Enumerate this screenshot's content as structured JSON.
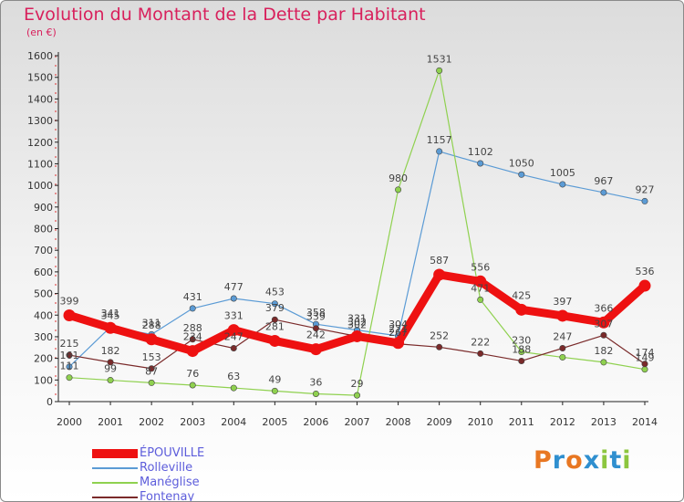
{
  "chart_data": {
    "type": "line",
    "title": "Evolution du Montant de la Dette par Habitant",
    "subtitle": "(en €)",
    "x": [
      "2000",
      "2001",
      "2002",
      "2003",
      "2004",
      "2005",
      "2006",
      "2007",
      "2008",
      "2009",
      "2010",
      "2011",
      "2012",
      "2013",
      "2014"
    ],
    "ylim": [
      0,
      1600
    ],
    "yticks": [
      0,
      100,
      200,
      300,
      400,
      500,
      600,
      700,
      800,
      900,
      1000,
      1100,
      1200,
      1300,
      1400,
      1500,
      1600
    ],
    "grid": false,
    "legend_position": "bottom-left",
    "series": [
      {
        "name": "Rolleville",
        "color": "#5b9bd5",
        "width": 1.2,
        "values": [
          161,
          345,
          311,
          431,
          477,
          453,
          358,
          331,
          304,
          1157,
          1102,
          1050,
          1005,
          967,
          927
        ],
        "labels": [
          "161",
          "345",
          "311",
          "431",
          "477",
          "453",
          "358",
          "331",
          "304",
          "1157",
          "1102",
          "1050",
          "1005",
          "967",
          "927"
        ]
      },
      {
        "name": "Manéglise",
        "color": "#8fd14f",
        "width": 1.2,
        "values": [
          111,
          99,
          87,
          76,
          63,
          49,
          36,
          29,
          980,
          1531,
          471,
          230,
          205,
          182,
          149
        ],
        "labels": [
          "111",
          "99",
          "87",
          "76",
          "63",
          "49",
          "36",
          "29",
          "980",
          "1531",
          "471",
          "230",
          "",
          "182",
          "149"
        ]
      },
      {
        "name": "Fontenay",
        "color": "#7a2a2a",
        "width": 1.2,
        "values": [
          215,
          182,
          153,
          288,
          247,
          379,
          339,
          302,
          267,
          252,
          222,
          188,
          247,
          307,
          174
        ],
        "labels": [
          "215",
          "182",
          "153",
          "288",
          "247",
          "379",
          "339",
          "302",
          "267",
          "252",
          "222",
          "188",
          "247",
          "307",
          "174"
        ]
      },
      {
        "name": "ÉPOUVILLE",
        "color": "#ee1111",
        "width": 9,
        "values": [
          399,
          341,
          288,
          234,
          331,
          281,
          242,
          302,
          271,
          587,
          556,
          425,
          397,
          366,
          536
        ],
        "labels": [
          "399",
          "341",
          "288",
          "234",
          "331",
          "281",
          "242",
          "302",
          "271",
          "587",
          "556",
          "425",
          "397",
          "366",
          "536"
        ]
      }
    ]
  },
  "legend": [
    "ÉPOUVILLE",
    "Rolleville",
    "Manéglise",
    "Fontenay"
  ],
  "logo": {
    "text": "Proxiti",
    "colors": [
      "#e87722",
      "#2f8fcf",
      "#e87722",
      "#2f8fcf",
      "#8cc63f",
      "#2f8fcf",
      "#8cc63f"
    ]
  }
}
